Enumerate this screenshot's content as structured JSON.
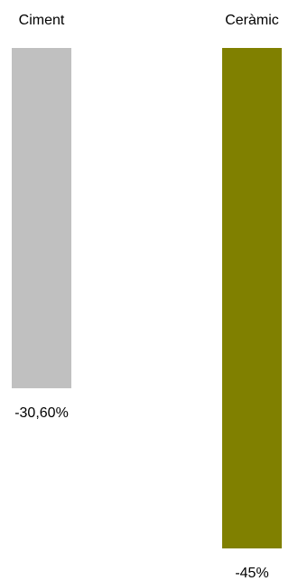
{
  "chart_data": {
    "type": "bar",
    "categories": [
      "Ciment",
      "Ceràmic"
    ],
    "values": [
      -30.6,
      -45
    ],
    "value_labels": [
      "-30,60%",
      "-45%"
    ],
    "ylim": [
      -45,
      0
    ],
    "grid": false,
    "legend": "none",
    "colors": [
      "#c0c0c0",
      "#808000"
    ]
  }
}
